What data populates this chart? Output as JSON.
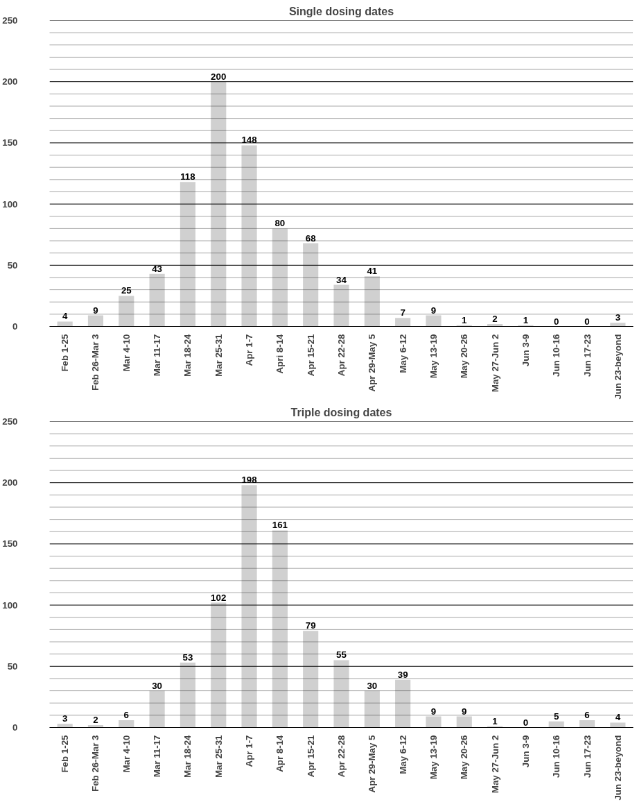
{
  "chart_data": [
    {
      "type": "bar",
      "title": "Single dosing dates",
      "categories": [
        "Feb 1-25",
        "Feb 26-Mar 3",
        "Mar 4-10",
        "Mar 11-17",
        "Mar 18-24",
        "Mar 25-31",
        "Apr 1-7",
        "Apri 8-14",
        "Apr 15-21",
        "Apr 22-28",
        "Apr 29-May 5",
        "May 6-12",
        "May 13-19",
        "May 20-26",
        "May 27-Jun 2",
        "Jun 3-9",
        "Jun 10-16",
        "Jun 17-23",
        "Jun 23-beyond"
      ],
      "values": [
        4,
        9,
        25,
        43,
        118,
        200,
        148,
        80,
        68,
        34,
        41,
        7,
        9,
        1,
        2,
        1,
        0,
        0,
        3
      ],
      "color": "#d0d0d0",
      "data_labels": true,
      "grid": "y",
      "ylim": [
        0,
        250
      ],
      "yticks": [
        0,
        {
          "value": 10,
          "label": null
        },
        {
          "value": 20,
          "label": null
        },
        {
          "value": 30,
          "label": null
        },
        {
          "value": 40,
          "label": null
        },
        50,
        {
          "value": 60,
          "label": null
        },
        {
          "value": 70,
          "label": null
        },
        {
          "value": 80,
          "label": null
        },
        {
          "value": 90,
          "label": null
        },
        100,
        {
          "value": 110,
          "label": null
        },
        {
          "value": 120,
          "label": null
        },
        {
          "value": 130,
          "label": null
        },
        {
          "value": 140,
          "label": null
        },
        150,
        {
          "value": 160,
          "label": null
        },
        {
          "value": 170,
          "label": null
        },
        {
          "value": 180,
          "label": null
        },
        {
          "value": 190,
          "label": null
        },
        200,
        {
          "value": 210,
          "label": null
        },
        {
          "value": 220,
          "label": null
        },
        {
          "value": 230,
          "label": null
        },
        {
          "value": 240,
          "label": null
        },
        250
      ]
    },
    {
      "type": "bar",
      "title": "Triple dosing dates",
      "categories": [
        "Feb 1-25",
        "Feb 26-Mar 3",
        "Mar 4-10",
        "Mar 11-17",
        "Mar 18-24",
        "Mar 25-31",
        "Apr 1-7",
        "Apr 8-14",
        "Apr 15-21",
        "Apr 22-28",
        "Apr 29-May 5",
        "May 6-12",
        "May 13-19",
        "May 20-26",
        "May 27-Jun 2",
        "Jun 3-9",
        "Jun 10-16",
        "Jun 17-23",
        "Jun 23-beyond"
      ],
      "values": [
        3,
        2,
        6,
        30,
        53,
        102,
        198,
        161,
        79,
        55,
        30,
        39,
        9,
        9,
        1,
        0,
        5,
        6,
        4
      ],
      "color": "#d0d0d0",
      "data_labels": true,
      "grid": "y",
      "ylim": [
        0,
        250
      ],
      "yticks": [
        0,
        {
          "value": 10,
          "label": null
        },
        {
          "value": 20,
          "label": null
        },
        {
          "value": 30,
          "label": null
        },
        {
          "value": 40,
          "label": null
        },
        50,
        {
          "value": 60,
          "label": null
        },
        {
          "value": 70,
          "label": null
        },
        {
          "value": 80,
          "label": null
        },
        {
          "value": 90,
          "label": null
        },
        100,
        {
          "value": 110,
          "label": null
        },
        {
          "value": 120,
          "label": null
        },
        {
          "value": 130,
          "label": null
        },
        {
          "value": 140,
          "label": null
        },
        150,
        {
          "value": 160,
          "label": null
        },
        {
          "value": 170,
          "label": null
        },
        {
          "value": 180,
          "label": null
        },
        {
          "value": 190,
          "label": null
        },
        200,
        {
          "value": 210,
          "label": null
        },
        {
          "value": 220,
          "label": null
        },
        {
          "value": 230,
          "label": null
        },
        {
          "value": 240,
          "label": null
        },
        250
      ]
    }
  ]
}
